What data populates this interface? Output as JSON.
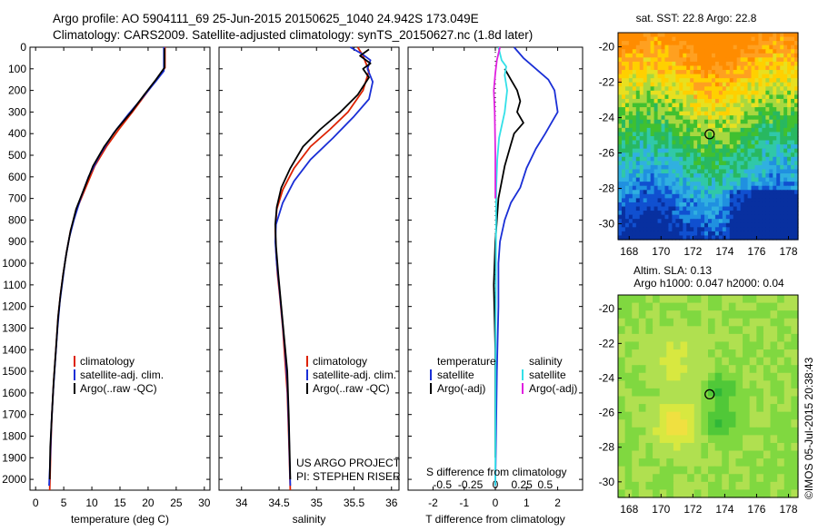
{
  "header": {
    "line1": "Argo profile: AO 5904111_69 25-Jun-2015 20150625_1040 24.942S 173.049E",
    "line2": "Climatology: CARS2009. Satellite-adjusted climatology: synTS_20150627.nc (1.8d later)"
  },
  "credits": {
    "project": "US ARGO PROJECT",
    "pi": "PI: STEPHEN RISER",
    "stamp": "©IMOS 05-Jul-2015 20:38:43"
  },
  "colors": {
    "climatology": "#dd2200",
    "satellite": "#1a2fd6",
    "argo": "#000000",
    "salinity_sat": "#33e0e8",
    "salinity_argo": "#e020e0"
  },
  "chart_data": [
    {
      "type": "line",
      "name": "temperature-profile",
      "xlabel": "temperature (deg C)",
      "xlim": [
        -1,
        31
      ],
      "xticks": [
        0,
        5,
        10,
        15,
        20,
        25,
        30
      ],
      "ylim": [
        2050,
        0
      ],
      "yticks": [
        0,
        100,
        200,
        300,
        400,
        500,
        600,
        700,
        800,
        900,
        1000,
        1100,
        1200,
        1300,
        1400,
        1500,
        1600,
        1700,
        1800,
        1900,
        2000
      ],
      "legend": [
        "climatology",
        "satellite-adj. clim.",
        "Argo(..raw -QC)"
      ],
      "series": [
        {
          "name": "climatology",
          "color": "#dd2200",
          "points": [
            [
              23.0,
              0
            ],
            [
              23.0,
              95
            ],
            [
              21.5,
              150
            ],
            [
              19.5,
              220
            ],
            [
              17.2,
              300
            ],
            [
              14.8,
              380
            ],
            [
              12.6,
              460
            ],
            [
              10.5,
              550
            ],
            [
              8.9,
              650
            ],
            [
              7.3,
              750
            ],
            [
              6.2,
              850
            ],
            [
              5.5,
              950
            ],
            [
              4.9,
              1050
            ],
            [
              4.4,
              1150
            ],
            [
              4.0,
              1250
            ],
            [
              3.6,
              1400
            ],
            [
              3.2,
              1550
            ],
            [
              2.9,
              1700
            ],
            [
              2.7,
              1850
            ],
            [
              2.5,
              2050
            ]
          ]
        },
        {
          "name": "satellite-adj. clim.",
          "color": "#1a2fd6",
          "points": [
            [
              22.8,
              0
            ],
            [
              22.8,
              110
            ],
            [
              21.3,
              160
            ],
            [
              19.1,
              230
            ],
            [
              16.5,
              310
            ],
            [
              13.8,
              400
            ],
            [
              11.4,
              500
            ],
            [
              9.4,
              600
            ],
            [
              8.0,
              700
            ],
            [
              6.8,
              800
            ],
            [
              6.0,
              880
            ],
            [
              5.3,
              980
            ],
            [
              4.8,
              1080
            ],
            [
              4.3,
              1180
            ],
            [
              3.9,
              1300
            ],
            [
              3.5,
              1450
            ],
            [
              3.1,
              1600
            ],
            [
              2.8,
              1750
            ],
            [
              2.6,
              1900
            ],
            [
              2.4,
              2030
            ]
          ]
        },
        {
          "name": "Argo(..raw -QC)",
          "color": "#000000",
          "points": [
            [
              22.9,
              5
            ],
            [
              22.9,
              95
            ],
            [
              21.4,
              150
            ],
            [
              19.3,
              220
            ],
            [
              17.0,
              300
            ],
            [
              14.4,
              380
            ],
            [
              12.2,
              460
            ],
            [
              10.2,
              550
            ],
            [
              8.7,
              650
            ],
            [
              7.2,
              750
            ],
            [
              6.2,
              850
            ],
            [
              5.5,
              950
            ],
            [
              4.9,
              1050
            ],
            [
              4.4,
              1150
            ],
            [
              4.0,
              1250
            ],
            [
              3.6,
              1400
            ],
            [
              3.2,
              1550
            ],
            [
              2.9,
              1700
            ],
            [
              2.6,
              1850
            ],
            [
              2.5,
              2000
            ]
          ]
        }
      ]
    },
    {
      "type": "line",
      "name": "salinity-profile",
      "xlabel": "salinity",
      "xlim": [
        33.7,
        36.1
      ],
      "xticks": [
        34,
        34.5,
        35,
        35.5,
        36
      ],
      "ylim": [
        2050,
        0
      ],
      "legend": [
        "climatology",
        "satellite-adj. clim.",
        "Argo(..raw -QC)"
      ],
      "series": [
        {
          "name": "climatology",
          "color": "#dd2200",
          "points": [
            [
              35.55,
              0
            ],
            [
              35.62,
              40
            ],
            [
              35.7,
              110
            ],
            [
              35.62,
              200
            ],
            [
              35.42,
              300
            ],
            [
              35.18,
              380
            ],
            [
              34.92,
              460
            ],
            [
              34.7,
              560
            ],
            [
              34.55,
              660
            ],
            [
              34.47,
              750
            ],
            [
              34.45,
              850
            ],
            [
              34.46,
              950
            ],
            [
              34.48,
              1050
            ],
            [
              34.51,
              1150
            ],
            [
              34.55,
              1300
            ],
            [
              34.58,
              1450
            ],
            [
              34.61,
              1600
            ],
            [
              34.63,
              1800
            ],
            [
              34.65,
              2050
            ]
          ]
        },
        {
          "name": "satellite-adj. clim.",
          "color": "#1a2fd6",
          "points": [
            [
              35.45,
              0
            ],
            [
              35.6,
              30
            ],
            [
              35.72,
              60
            ],
            [
              35.68,
              100
            ],
            [
              35.75,
              160
            ],
            [
              35.7,
              240
            ],
            [
              35.5,
              320
            ],
            [
              35.22,
              420
            ],
            [
              34.92,
              520
            ],
            [
              34.7,
              620
            ],
            [
              34.55,
              720
            ],
            [
              34.46,
              820
            ],
            [
              34.45,
              900
            ],
            [
              34.47,
              1000
            ],
            [
              34.5,
              1100
            ],
            [
              34.54,
              1250
            ],
            [
              34.58,
              1400
            ],
            [
              34.61,
              1550
            ],
            [
              34.63,
              1750
            ],
            [
              34.65,
              2030
            ]
          ]
        },
        {
          "name": "Argo(..raw -QC)",
          "color": "#000000",
          "points": [
            [
              35.7,
              10
            ],
            [
              35.58,
              40
            ],
            [
              35.72,
              75
            ],
            [
              35.62,
              100
            ],
            [
              35.7,
              140
            ],
            [
              35.55,
              220
            ],
            [
              35.32,
              300
            ],
            [
              35.05,
              380
            ],
            [
              34.82,
              460
            ],
            [
              34.65,
              560
            ],
            [
              34.53,
              650
            ],
            [
              34.47,
              740
            ],
            [
              34.45,
              820
            ],
            [
              34.46,
              920
            ],
            [
              34.49,
              1050
            ],
            [
              34.53,
              1200
            ],
            [
              34.57,
              1350
            ],
            [
              34.61,
              1500
            ],
            [
              34.63,
              1700
            ],
            [
              34.65,
              2000
            ]
          ]
        }
      ]
    },
    {
      "type": "line",
      "name": "difference-profile",
      "xlabel": "T difference from climatology",
      "xlabel_top": "S difference from climatology",
      "xlim": [
        -2.8,
        2.8
      ],
      "xticks": [
        -2,
        -1,
        0,
        1,
        2
      ],
      "xtick_labels_S": [
        "-0.5",
        "-0.25",
        "0",
        "0.25",
        "0.5"
      ],
      "ylim": [
        2050,
        0
      ],
      "legend": [
        "temperature",
        "satellite",
        "Argo(-adj)",
        "salinity",
        "satellite",
        "Argo(-adj)"
      ],
      "series": [
        {
          "name": "T satellite",
          "color": "#1a2fd6",
          "points": [
            [
              0.6,
              0
            ],
            [
              0.9,
              50
            ],
            [
              1.3,
              100
            ],
            [
              1.7,
              150
            ],
            [
              1.9,
              200
            ],
            [
              2.0,
              300
            ],
            [
              1.8,
              350
            ],
            [
              1.6,
              400
            ],
            [
              1.3,
              470
            ],
            [
              1.0,
              560
            ],
            [
              0.8,
              650
            ],
            [
              0.5,
              720
            ],
            [
              0.3,
              800
            ],
            [
              0.15,
              900
            ],
            [
              0.1,
              1000
            ],
            [
              0.1,
              1200
            ],
            [
              0.05,
              1500
            ],
            [
              0.0,
              2030
            ]
          ]
        },
        {
          "name": "T Argo(-adj)",
          "color": "#000000",
          "points": [
            [
              0.3,
              100
            ],
            [
              0.5,
              150
            ],
            [
              0.7,
              200
            ],
            [
              0.8,
              250
            ],
            [
              0.7,
              300
            ],
            [
              0.9,
              350
            ],
            [
              0.6,
              400
            ],
            [
              0.5,
              450
            ],
            [
              0.3,
              550
            ],
            [
              0.1,
              700
            ],
            [
              0.0,
              900
            ],
            [
              -0.05,
              1100
            ],
            [
              0.0,
              1400
            ],
            [
              0.0,
              1900
            ]
          ]
        },
        {
          "name": "S satellite",
          "color": "#33e0e8",
          "points": [
            [
              0.1,
              0
            ],
            [
              0.2,
              60
            ],
            [
              0.35,
              90
            ],
            [
              0.3,
              130
            ],
            [
              0.38,
              200
            ],
            [
              0.3,
              300
            ],
            [
              0.12,
              420
            ],
            [
              0.06,
              520
            ],
            [
              0.03,
              650
            ],
            [
              0.02,
              900
            ],
            [
              0.01,
              1300
            ],
            [
              0.0,
              2030
            ]
          ]
        },
        {
          "name": "S Argo(-adj)",
          "color": "#e020e0",
          "points": [
            [
              0.15,
              0
            ],
            [
              0.05,
              60
            ],
            [
              0.0,
              120
            ],
            [
              -0.05,
              200
            ],
            [
              -0.02,
              300
            ],
            [
              0.0,
              500
            ],
            [
              0.0,
              700
            ]
          ]
        }
      ]
    },
    {
      "type": "heatmap",
      "name": "sst-map",
      "title": "sat. SST: 22.8  Argo: 22.8",
      "xticks": [
        168,
        170,
        172,
        174,
        176,
        178
      ],
      "yticks": [
        -20,
        -22,
        -24,
        -26,
        -28,
        -30
      ],
      "xlim": [
        167.3,
        178.6
      ],
      "ylim": [
        -30.9,
        -19.2
      ],
      "marker": {
        "lon": 173.05,
        "lat": -24.94
      }
    },
    {
      "type": "heatmap",
      "name": "sla-map",
      "title": "Altim. SLA: 0.13",
      "subtitle": "Argo h1000: 0.047 h2000: 0.04",
      "xticks": [
        168,
        170,
        172,
        174,
        176,
        178
      ],
      "yticks": [
        -20,
        -22,
        -24,
        -26,
        -28,
        -30
      ],
      "xlim": [
        167.3,
        178.6
      ],
      "ylim": [
        -30.9,
        -19.2
      ],
      "marker": {
        "lon": 173.05,
        "lat": -24.94
      }
    }
  ]
}
